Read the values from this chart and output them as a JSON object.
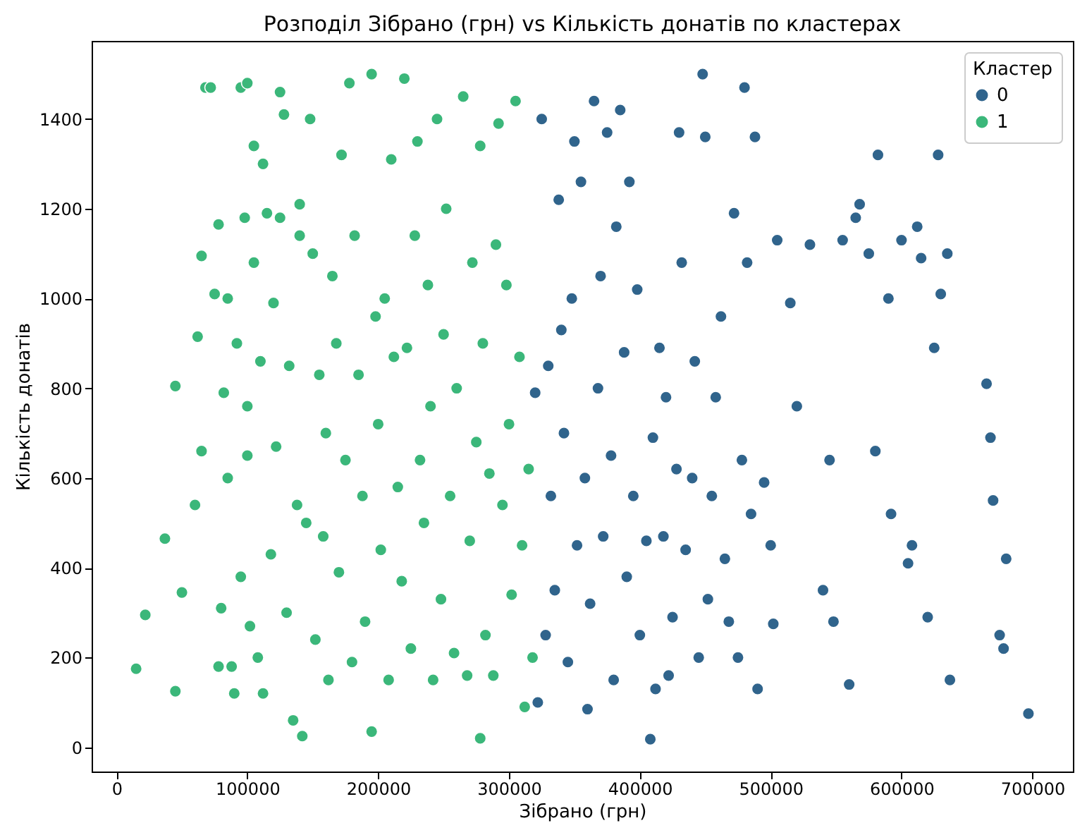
{
  "chart_data": {
    "type": "scatter",
    "title": "Розподіл Зібрано (грн) vs Кількість донатів по кластерах",
    "xlabel": "Зібрано (грн)",
    "ylabel": "Кількість донатів",
    "legend_title": "Кластер",
    "xlim": [
      -19000,
      731000
    ],
    "ylim": [
      -54,
      1574
    ],
    "xticks": [
      0,
      100000,
      200000,
      300000,
      400000,
      500000,
      600000,
      700000
    ],
    "yticks": [
      0,
      200,
      400,
      600,
      800,
      1000,
      1200,
      1400
    ],
    "grid": false,
    "legend": "top right",
    "marker": "circle",
    "series": [
      {
        "name": "0",
        "color": "#30648c",
        "x": [
          320000,
          322000,
          325000,
          328000,
          330000,
          332000,
          335000,
          338000,
          340000,
          342000,
          345000,
          348000,
          350000,
          352000,
          355000,
          358000,
          360000,
          362000,
          365000,
          368000,
          370000,
          372000,
          375000,
          378000,
          380000,
          382000,
          385000,
          388000,
          390000,
          392000,
          395000,
          398000,
          400000,
          405000,
          408000,
          410000,
          412000,
          415000,
          418000,
          420000,
          422000,
          425000,
          428000,
          430000,
          432000,
          435000,
          440000,
          442000,
          445000,
          448000,
          450000,
          452000,
          455000,
          458000,
          462000,
          465000,
          468000,
          472000,
          475000,
          478000,
          480000,
          482000,
          485000,
          488000,
          490000,
          495000,
          500000,
          502000,
          505000,
          515000,
          520000,
          530000,
          540000,
          545000,
          548000,
          555000,
          560000,
          565000,
          568000,
          575000,
          580000,
          582000,
          590000,
          592000,
          600000,
          605000,
          608000,
          612000,
          615000,
          620000,
          625000,
          628000,
          630000,
          635000,
          637000,
          665000,
          668000,
          670000,
          675000,
          678000,
          680000,
          697000
        ],
        "values": [
          790,
          100,
          1400,
          250,
          850,
          560,
          350,
          1220,
          930,
          700,
          190,
          1000,
          1350,
          450,
          1260,
          600,
          85,
          320,
          1440,
          800,
          1050,
          470,
          1370,
          650,
          150,
          1160,
          1420,
          880,
          380,
          1260,
          560,
          1020,
          250,
          460,
          18,
          690,
          130,
          890,
          470,
          780,
          160,
          290,
          620,
          1370,
          1080,
          440,
          600,
          860,
          200,
          1500,
          1360,
          330,
          560,
          780,
          960,
          420,
          280,
          1190,
          200,
          640,
          1470,
          1080,
          520,
          1360,
          130,
          590,
          450,
          275,
          1130,
          990,
          760,
          1120,
          350,
          640,
          280,
          1130,
          140,
          1180,
          1210,
          1100,
          660,
          1320,
          1000,
          520,
          1130,
          410,
          450,
          1160,
          1090,
          290,
          890,
          1320,
          1010,
          1100,
          150,
          810,
          690,
          550,
          250,
          220,
          420,
          75
        ]
      },
      {
        "name": "1",
        "color": "#3bb77a",
        "x": [
          15000,
          22000,
          37000,
          45000,
          45000,
          50000,
          60000,
          62000,
          65000,
          65000,
          68000,
          72000,
          75000,
          78000,
          78000,
          80000,
          82000,
          85000,
          85000,
          88000,
          90000,
          92000,
          95000,
          95000,
          98000,
          100000,
          100000,
          100000,
          102000,
          105000,
          105000,
          108000,
          110000,
          112000,
          112000,
          115000,
          118000,
          120000,
          122000,
          125000,
          125000,
          128000,
          130000,
          132000,
          135000,
          138000,
          140000,
          140000,
          142000,
          145000,
          148000,
          150000,
          152000,
          155000,
          158000,
          160000,
          162000,
          165000,
          168000,
          170000,
          172000,
          175000,
          178000,
          180000,
          182000,
          185000,
          188000,
          190000,
          195000,
          195000,
          198000,
          200000,
          202000,
          205000,
          208000,
          210000,
          212000,
          215000,
          218000,
          220000,
          222000,
          225000,
          228000,
          230000,
          232000,
          235000,
          238000,
          240000,
          242000,
          245000,
          248000,
          250000,
          252000,
          255000,
          258000,
          260000,
          265000,
          268000,
          270000,
          272000,
          275000,
          278000,
          280000,
          282000,
          285000,
          288000,
          290000,
          292000,
          295000,
          298000,
          300000,
          302000,
          305000,
          308000,
          310000,
          312000,
          315000,
          318000,
          278000
        ],
        "values": [
          175,
          295,
          465,
          125,
          805,
          345,
          540,
          915,
          660,
          1095,
          1470,
          1470,
          1010,
          1165,
          180,
          310,
          790,
          1000,
          600,
          180,
          120,
          900,
          1470,
          380,
          1180,
          650,
          760,
          1480,
          270,
          1340,
          1080,
          200,
          860,
          1300,
          120,
          1190,
          430,
          990,
          670,
          1180,
          1460,
          1410,
          300,
          850,
          60,
          540,
          1210,
          1140,
          25,
          500,
          1400,
          1100,
          240,
          830,
          470,
          700,
          150,
          1050,
          900,
          390,
          1320,
          640,
          1480,
          190,
          1140,
          830,
          560,
          280,
          35,
          1500,
          960,
          720,
          440,
          1000,
          150,
          1310,
          870,
          580,
          370,
          1490,
          890,
          220,
          1140,
          1350,
          640,
          500,
          1030,
          760,
          150,
          1400,
          330,
          920,
          1200,
          560,
          210,
          800,
          1450,
          160,
          460,
          1080,
          680,
          1340,
          900,
          250,
          610,
          160,
          1120,
          1390,
          540,
          1030,
          720,
          340,
          1440,
          870,
          450,
          90,
          620,
          200,
          20
        ]
      }
    ]
  }
}
